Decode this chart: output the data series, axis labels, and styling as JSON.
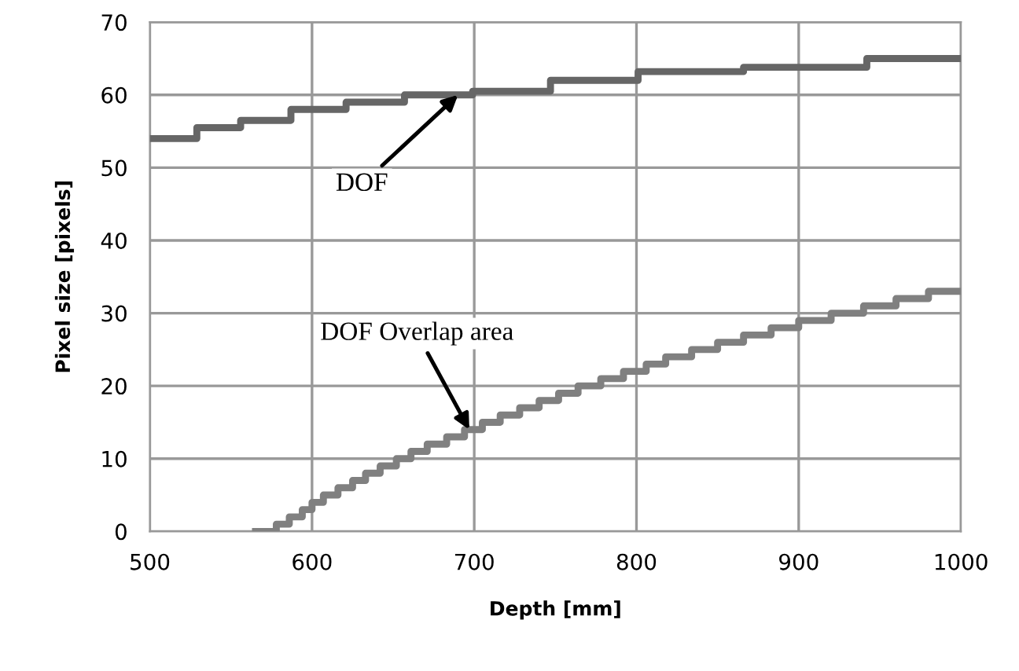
{
  "chart_data": {
    "type": "step",
    "xlabel": "Depth [mm]",
    "ylabel": "Pixel size [pixels]",
    "xlim": [
      500,
      1000
    ],
    "ylim": [
      0,
      70
    ],
    "xticks": [
      500,
      600,
      700,
      800,
      900,
      1000
    ],
    "yticks": [
      0,
      10,
      20,
      30,
      40,
      50,
      60,
      70
    ],
    "grid": true,
    "series": [
      {
        "color": "#666666",
        "x": [
          500,
          529,
          556,
          587,
          621,
          657,
          699,
          747,
          801,
          866,
          942,
          1000
        ],
        "values": [
          54,
          55.5,
          56.5,
          58,
          59,
          60,
          60.5,
          62,
          63.2,
          63.8,
          65,
          65
        ]
      },
      {
        "color": "#808080",
        "x": [
          563,
          578,
          586,
          594,
          600,
          607,
          616,
          625,
          633,
          642,
          652,
          661,
          671,
          683,
          694,
          705,
          716,
          728,
          740,
          752,
          764,
          778,
          792,
          806,
          818,
          834,
          850,
          866,
          883,
          900,
          920,
          940,
          960,
          980,
          1000
        ],
        "values": [
          0,
          1,
          2,
          3,
          4,
          5,
          6,
          7,
          8,
          9,
          10,
          11,
          12,
          13,
          14,
          15,
          16,
          17,
          18,
          19,
          20,
          21,
          22,
          23,
          24,
          25,
          26,
          27,
          28,
          29,
          30,
          31,
          32,
          33,
          33.5
        ]
      }
    ],
    "annotations": [
      {
        "text": "DOF",
        "x": 690,
        "y": 60
      },
      {
        "text": "DOF Overlap area",
        "x": 697,
        "y": 14
      }
    ]
  }
}
